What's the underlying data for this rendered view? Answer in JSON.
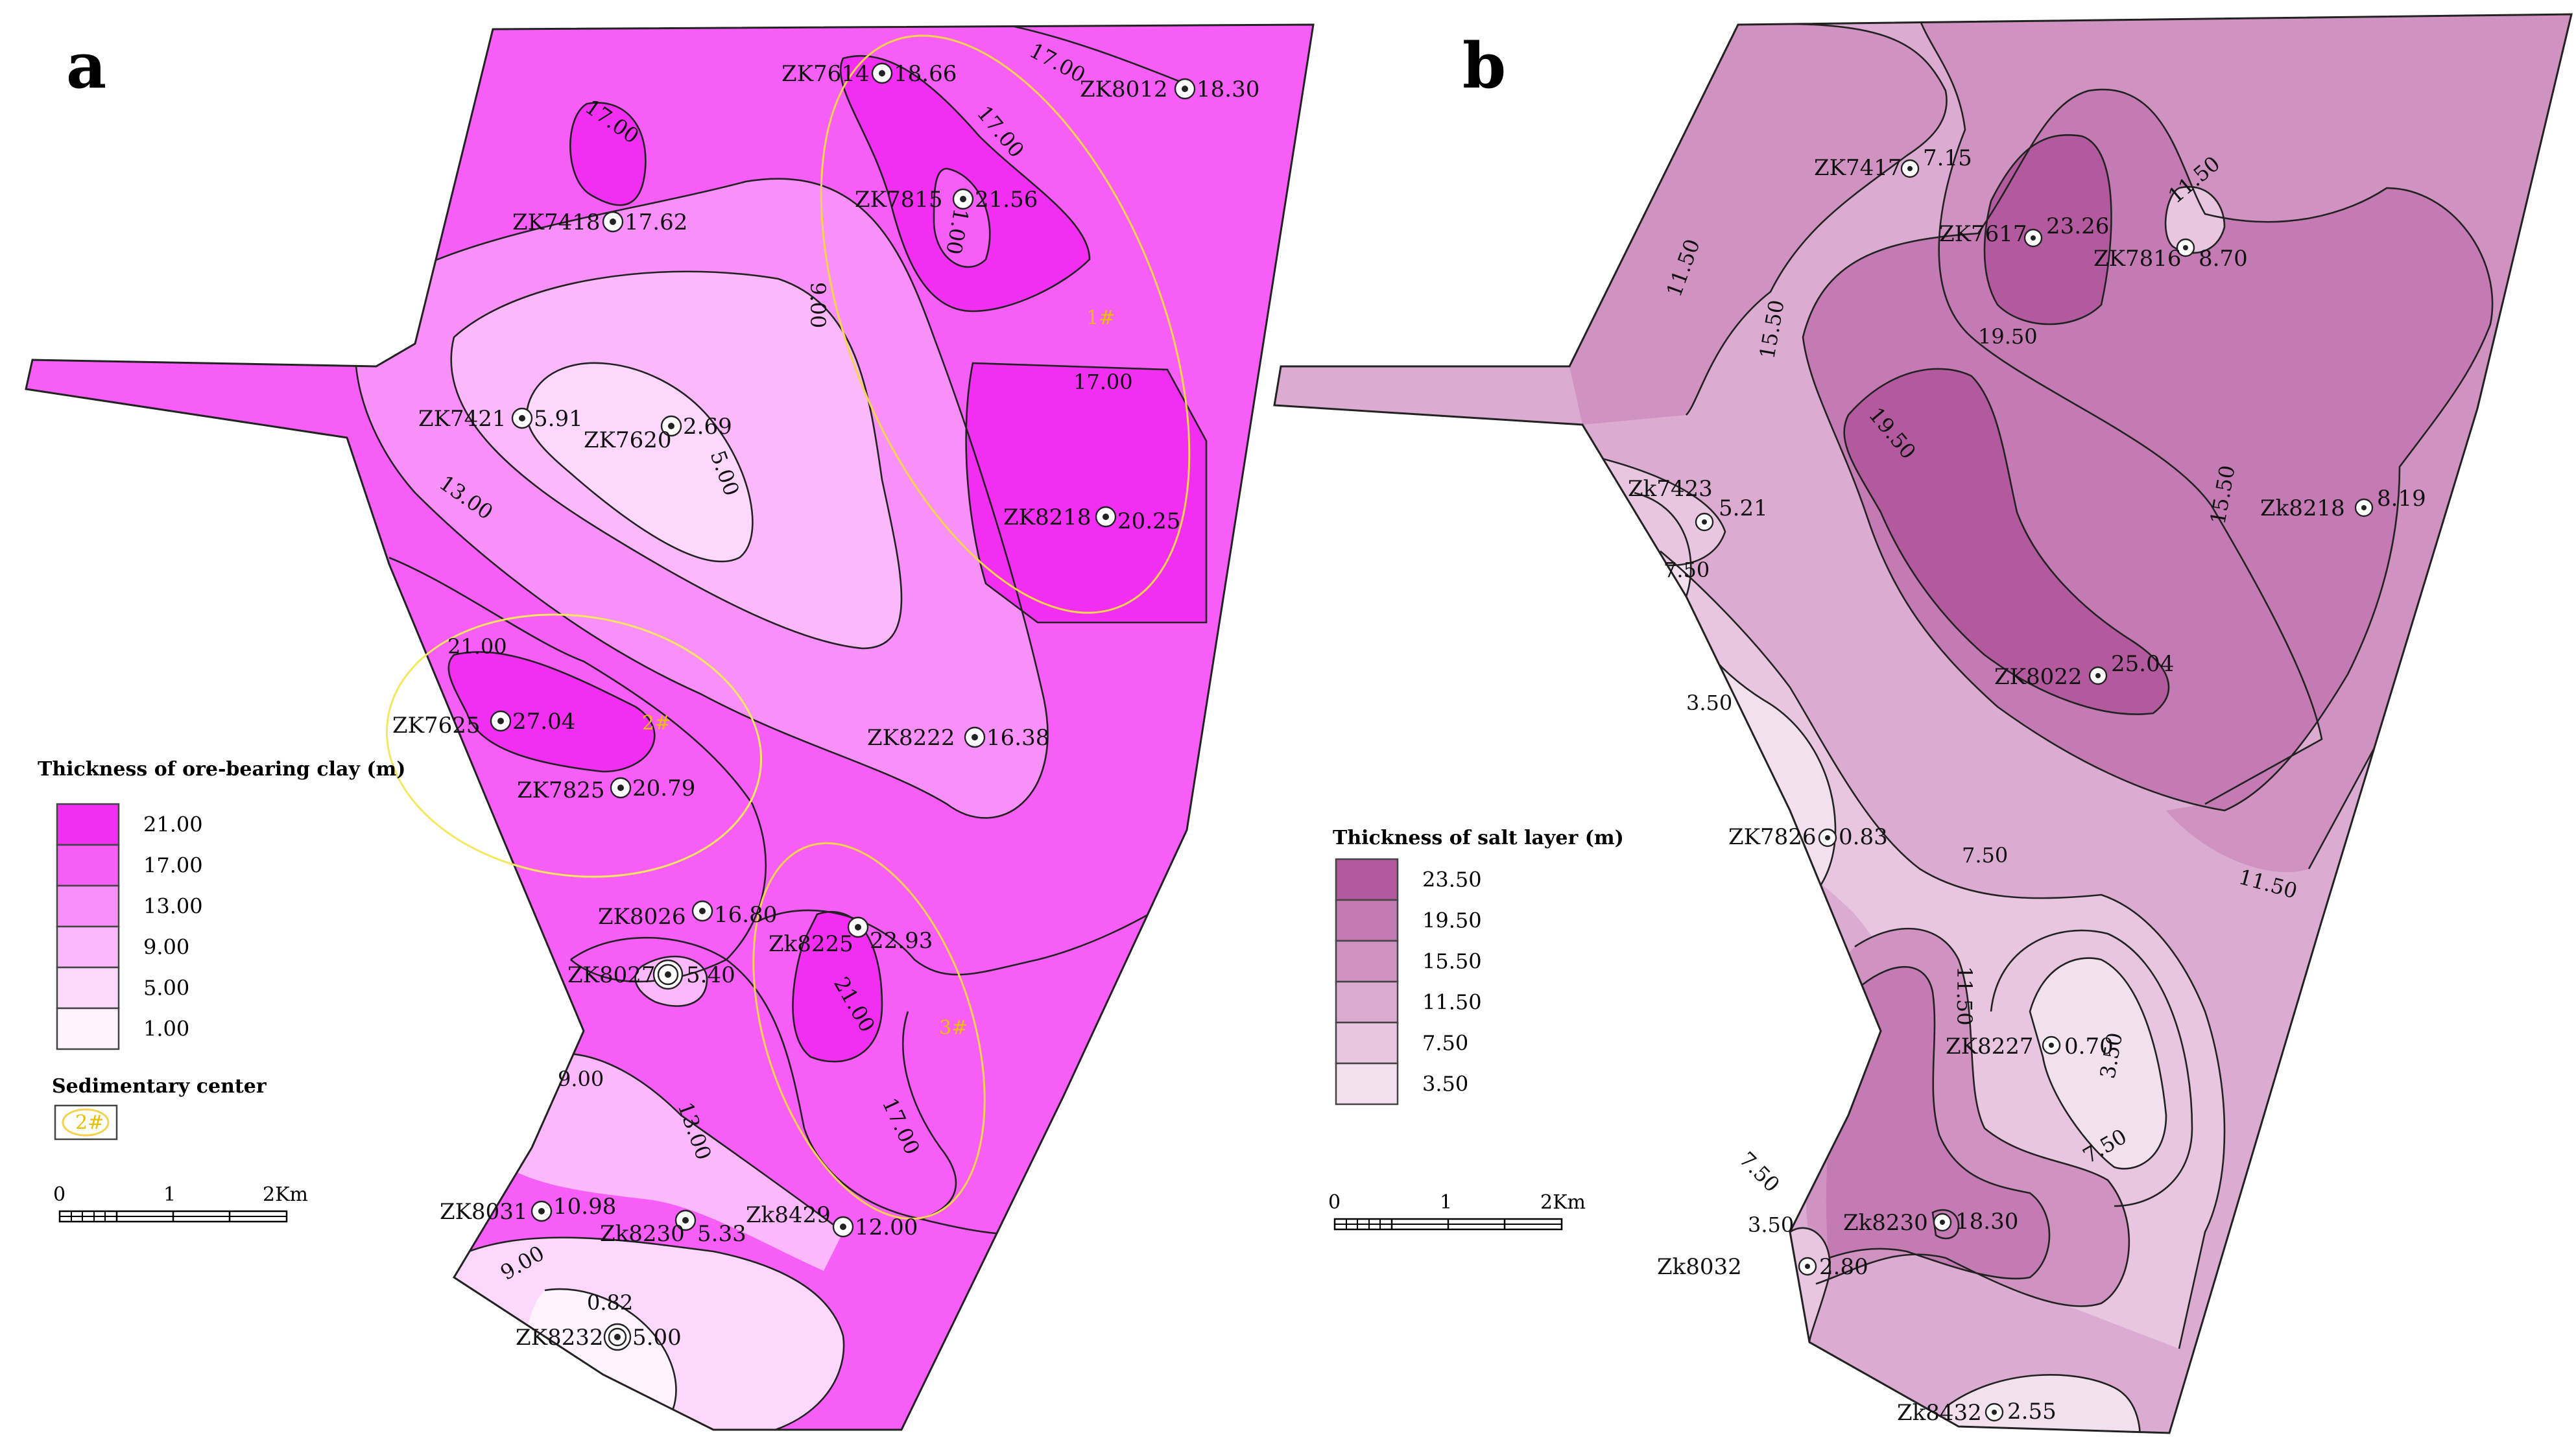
{
  "panel_a": {
    "letter": "a",
    "legend_title": "Thickness of ore-bearing clay (m)",
    "legend": [
      {
        "value": "21.00",
        "color": "#f12ef1"
      },
      {
        "value": "17.00",
        "color": "#f75df7"
      },
      {
        "value": "13.00",
        "color": "#f990f9"
      },
      {
        "value": "9.00",
        "color": "#fbb8fb"
      },
      {
        "value": "5.00",
        "color": "#fdd8fd"
      },
      {
        "value": "1.00",
        "color": "#fff3ff"
      }
    ],
    "sedimentary_title": "Sedimentary center",
    "sedimentary_symbol": "2#",
    "scale": {
      "zero": "0",
      "one": "1",
      "two": "2Km"
    },
    "centers": [
      "1#",
      "2#",
      "3#"
    ],
    "wells": [
      {
        "id": "ZK7614",
        "value": "18.66"
      },
      {
        "id": "ZK8012",
        "value": "18.30"
      },
      {
        "id": "ZK7418",
        "value": "17.62"
      },
      {
        "id": "ZK7815",
        "value": "21.56"
      },
      {
        "id": "ZK7421",
        "value": "5.91"
      },
      {
        "id": "ZK7620",
        "value": "2.69"
      },
      {
        "id": "ZK8218",
        "value": "20.25"
      },
      {
        "id": "ZK7625",
        "value": "27.04"
      },
      {
        "id": "ZK7825",
        "value": "20.79"
      },
      {
        "id": "ZK8222",
        "value": "16.38"
      },
      {
        "id": "ZK8026",
        "value": "16.80"
      },
      {
        "id": "ZK8027",
        "value": "5.40"
      },
      {
        "id": "Zk8225",
        "value": "22.93"
      },
      {
        "id": "ZK8031",
        "value": "10.98"
      },
      {
        "id": "Zk8230",
        "value": "5.33"
      },
      {
        "id": "Zk8429",
        "value": "12.00"
      },
      {
        "id": "ZK8232",
        "value": "5.00"
      }
    ],
    "contour_labels": [
      "17.00",
      "17.00",
      "17.00",
      "21.00",
      "9.00",
      "17.00",
      "5.00",
      "13.00",
      "21.00",
      "21.00",
      "9.00",
      "13.00",
      "17.00",
      "9.00",
      "0.82"
    ]
  },
  "panel_b": {
    "letter": "b",
    "legend_title": "Thickness of salt layer  (m)",
    "legend": [
      {
        "value": "23.50",
        "color": "#b35a9e"
      },
      {
        "value": "19.50",
        "color": "#c47ab3"
      },
      {
        "value": "15.50",
        "color": "#d092c1"
      },
      {
        "value": "11.50",
        "color": "#dcabd2"
      },
      {
        "value": "7.50",
        "color": "#e8c6e0"
      },
      {
        "value": "3.50",
        "color": "#f3e0ef"
      }
    ],
    "scale": {
      "zero": "0",
      "one": "1",
      "two": "2Km"
    },
    "wells": [
      {
        "id": "ZK7417",
        "value": "7.15"
      },
      {
        "id": "ZK7617",
        "value": "23.26"
      },
      {
        "id": "ZK7816",
        "value": "8.70"
      },
      {
        "id": "Zk7423",
        "value": "5.21"
      },
      {
        "id": "Zk8218",
        "value": "8.19"
      },
      {
        "id": "ZK8022",
        "value": "25.04"
      },
      {
        "id": "ZK7826",
        "value": "0.83"
      },
      {
        "id": "ZK8227",
        "value": "0.70"
      },
      {
        "id": "Zk8230",
        "value": "18.30"
      },
      {
        "id": "Zk8032",
        "value": "2.80"
      },
      {
        "id": "Zk8432",
        "value": "2.55"
      }
    ],
    "contour_labels": [
      "11.50",
      "11.50",
      "15.50",
      "19.50",
      "19.50",
      "15.50",
      "7.50",
      "3.50",
      "7.50",
      "11.50",
      "11.50",
      "3.50",
      "7.50",
      "7.50",
      "3.50"
    ]
  }
}
